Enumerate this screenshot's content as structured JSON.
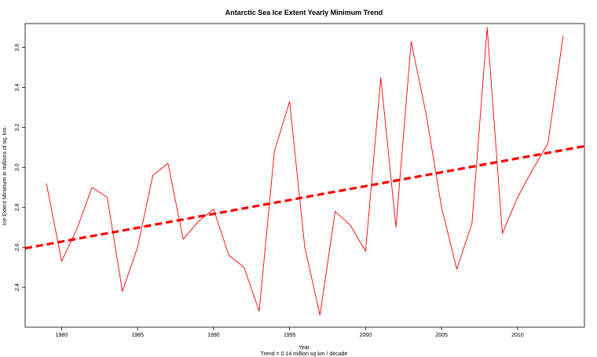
{
  "chart_data": {
    "type": "line",
    "title": "Antarctic Sea Ice Extent Yearly Minimum Trend",
    "xlabel": "Year",
    "subtitle": "Trend = 0.14 million sq km / decade",
    "ylabel": "Ice Extent Minimum in millions of sq. km.",
    "xlim": [
      1977.6,
      2014.4
    ],
    "ylim": [
      2.2,
      3.72
    ],
    "x_ticks": [
      1980,
      1985,
      1990,
      1995,
      2000,
      2005,
      2010
    ],
    "y_ticks": [
      2.4,
      2.6,
      2.8,
      3.0,
      3.2,
      3.4,
      3.6
    ],
    "grid": false,
    "legend": "none",
    "series": [
      {
        "color": "#ff0000",
        "style": "solid",
        "x": [
          1979,
          1980,
          1981,
          1982,
          1983,
          1984,
          1985,
          1986,
          1987,
          1988,
          1989,
          1990,
          1991,
          1992,
          1993,
          1994,
          1995,
          1996,
          1997,
          1998,
          1999,
          2000,
          2001,
          2002,
          2003,
          2004,
          2005,
          2006,
          2007,
          2008,
          2009,
          2010,
          2011,
          2012,
          2013
        ],
        "values": [
          2.92,
          2.53,
          2.69,
          2.9,
          2.85,
          2.38,
          2.6,
          2.96,
          3.02,
          2.64,
          2.73,
          2.79,
          2.56,
          2.5,
          2.28,
          3.08,
          3.33,
          2.6,
          2.26,
          2.78,
          2.71,
          2.58,
          3.45,
          2.7,
          3.63,
          3.26,
          2.8,
          2.49,
          2.72,
          3.7,
          2.67,
          2.85,
          2.99,
          3.12,
          3.66
        ]
      },
      {
        "color": "#ff0000",
        "style": "dashed",
        "x": [
          1977.6,
          2014.4
        ],
        "values": [
          2.595,
          3.106
        ]
      }
    ]
  }
}
